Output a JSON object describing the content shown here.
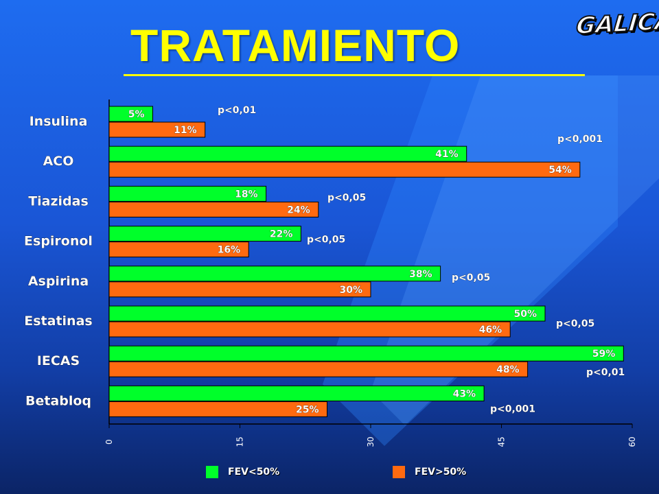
{
  "slide": {
    "title": "TRATAMIENTO",
    "logo_text": "GALICAP"
  },
  "colors": {
    "series_fev_lt50": "#00ff2a",
    "series_fev_gt50": "#ff6a10",
    "title": "#ffff00"
  },
  "chart_data": {
    "type": "bar",
    "orientation": "horizontal",
    "title": "",
    "xlabel": "",
    "ylabel": "",
    "xlim": [
      0,
      60
    ],
    "x_ticks": [
      "0",
      "15",
      "30",
      "45",
      "60"
    ],
    "grid": false,
    "legend_position": "bottom",
    "categories": [
      "Insulina",
      "ACO",
      "Tiazidas",
      "Espironol",
      "Aspirina",
      "Estatinas",
      "IECAS",
      "Betabloq"
    ],
    "series": [
      {
        "name": "FEV<50%",
        "values": [
          5,
          41,
          18,
          22,
          38,
          50,
          59,
          43
        ],
        "labels": [
          "5%",
          "41%",
          "18%",
          "22%",
          "38%",
          "50%",
          "59%",
          "43%"
        ]
      },
      {
        "name": "FEV>50%",
        "values": [
          11,
          54,
          24,
          16,
          30,
          46,
          48,
          25
        ],
        "labels": [
          "11%",
          "54%",
          "24%",
          "16%",
          "30%",
          "46%",
          "48%",
          "25%"
        ]
      }
    ],
    "annotations": [
      "p<0,01",
      "p<0,001",
      "p<0,05",
      "p<0,05",
      "p<0,05",
      "p<0,05",
      "p<0,01",
      "p<0,001"
    ]
  }
}
